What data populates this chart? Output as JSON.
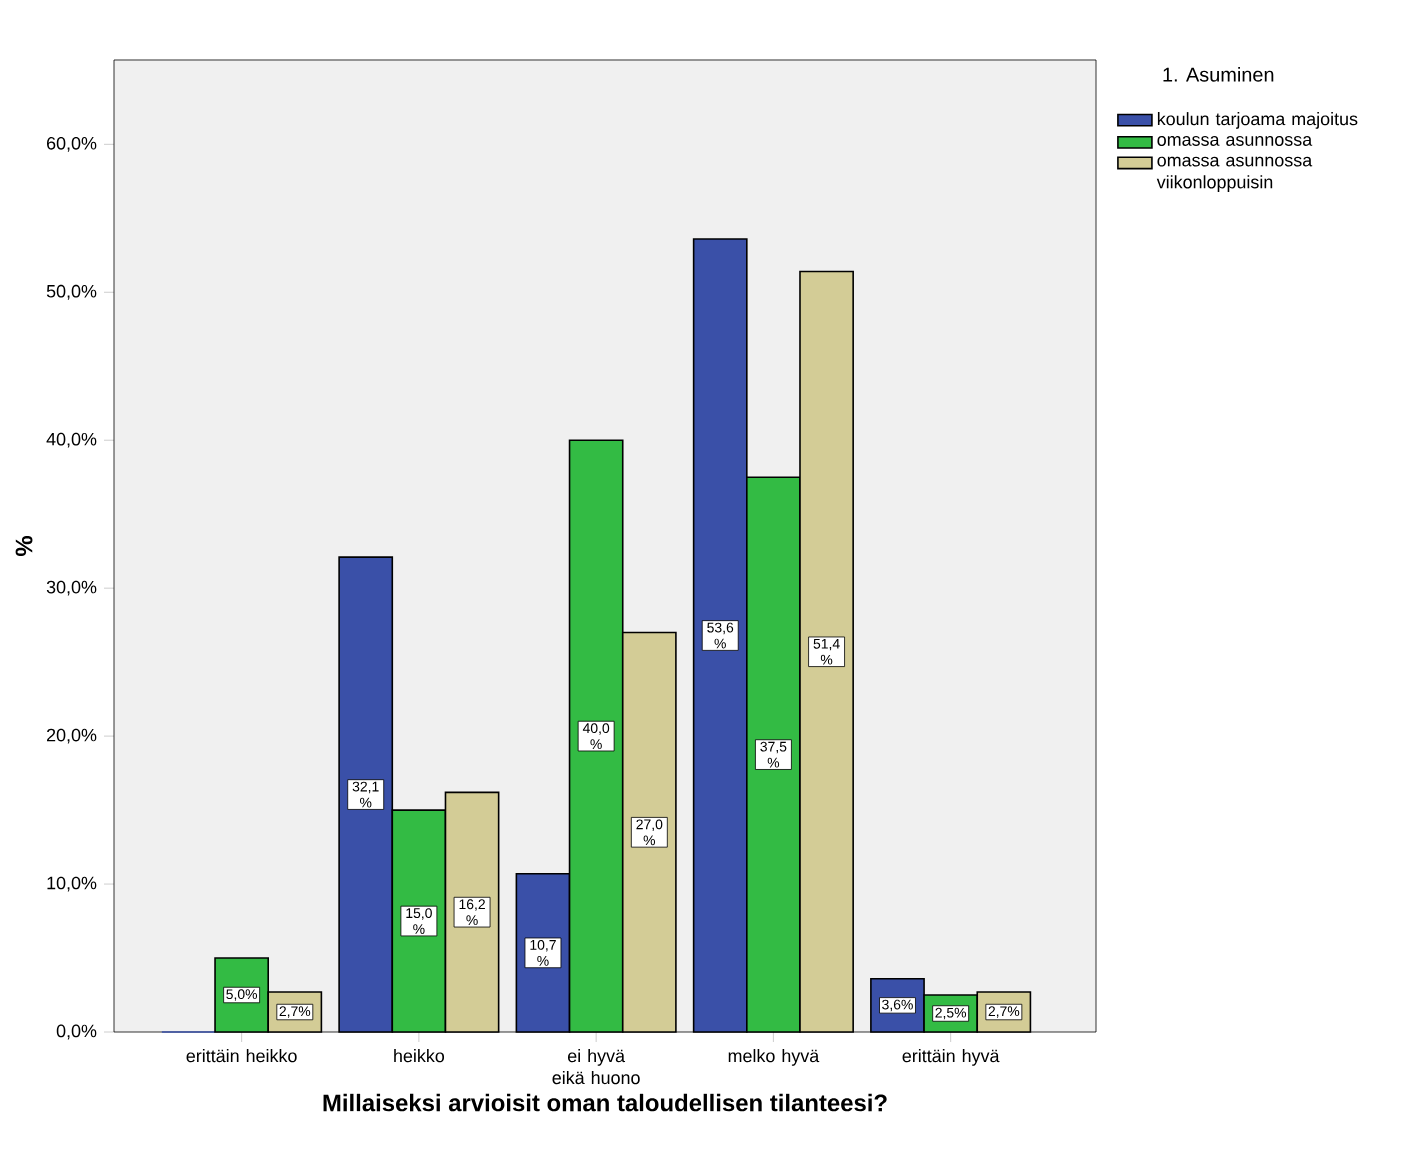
{
  "chart_data": {
    "type": "bar",
    "xlabel": "Millaiseksi arvioisit oman taloudellisen tilanteesi?",
    "ylabel": "%",
    "legend_title": "1. Asuminen",
    "categories": [
      "erittäin heikko",
      "heikko",
      "ei hyvä eikä huono",
      "melko hyvä",
      "erittäin hyvä"
    ],
    "series": [
      {
        "name": "koulun tarjoama majoitus",
        "color": "#3a50a8",
        "values": [
          0,
          32.1,
          10.7,
          53.6,
          3.6
        ],
        "value_labels": [
          null,
          "32,1 %",
          "10,7 %",
          "53,6 %",
          "3,6%"
        ]
      },
      {
        "name": "omassa asunnossa",
        "color": "#33bb44",
        "values": [
          5.0,
          15.0,
          40.0,
          37.5,
          2.5
        ],
        "value_labels": [
          "5,0%",
          "15,0 %",
          "40,0 %",
          "37,5 %",
          "2,5%"
        ]
      },
      {
        "name": "omassa asunnossa viikonloppuisin",
        "color": "#d3cc96",
        "values": [
          2.7,
          16.2,
          27.0,
          51.4,
          2.7
        ],
        "value_labels": [
          "2,7%",
          "16,2 %",
          "27,0 %",
          "51,4 %",
          "2,7%"
        ]
      }
    ],
    "ylim": [
      0,
      65.7
    ],
    "yticks": [
      {
        "value": 0,
        "label": "0,0%"
      },
      {
        "value": 10,
        "label": "10,0%"
      },
      {
        "value": 20,
        "label": "20,0%"
      },
      {
        "value": 30,
        "label": "30,0%"
      },
      {
        "value": 40,
        "label": "40,0%"
      },
      {
        "value": 50,
        "label": "50,0%"
      },
      {
        "value": 60,
        "label": "60,0%"
      }
    ],
    "legend": "top right",
    "grid": false
  }
}
